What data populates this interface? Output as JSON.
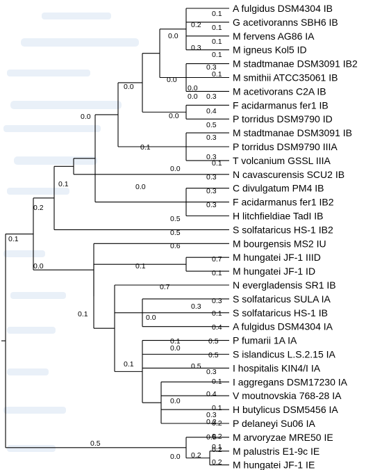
{
  "taxa": [
    "A fulgidus DSM4304 IB",
    "G acetivoranns SBH6 IB",
    "M fervens AG86 IA",
    "M igneus Kol5 ID",
    "M stadtmanae DSM3091 IB2",
    "M smithii ATCC35061 IB",
    "M acetivorans C2A IB",
    "F acidarmanus fer1 IB",
    "P torridus DSM9790 ID",
    "M stadtmanae DSM3091 IB",
    "P torridus DSM9790 IIIA",
    "T volcanium GSSL IIIA",
    "N cavascurensis SCU2 IB",
    "C divulgatum PM4 IB",
    "F acidarmanus fer1 IB2",
    "H litchfieldiae TadI IB",
    "S solfataricus HS-1 IB2",
    "M bourgensis MS2 IU",
    "M hungatei JF-1 IIID",
    "M hungatei JF-1 ID",
    "N evergladensis SR1 IB",
    "S solfataricus SULA IA",
    "S solfataricus HS-1 IB",
    "A fulgidus DSM4304 IA",
    "P fumarii 1A IA",
    "S islandicus L.S.2.15 IA",
    "I hospitalis KIN4/I IA",
    "I aggregans DSM17230 IA",
    "V moutnovskia 768-28 IA",
    "H butylicus DSM5456 IA",
    "P delaneyi Su06 IA",
    "M arvoryzae MRE50 IE",
    "M palustris E1-9c IE",
    "M hungatei JF-1 IE"
  ],
  "branch_lengths": [
    "0.1",
    "0.1",
    "0.2",
    "0.1",
    "0.3",
    "0.0",
    "0.1",
    "0.3",
    "0.1",
    "0.0",
    "0.0",
    "0.0",
    "0.3",
    "0.0",
    "0.4",
    "0.0",
    "0.5",
    "0.3",
    "0.3",
    "0.1",
    "0.0",
    "0.1",
    "0.3",
    "0.3",
    "0.3",
    "0.0",
    "0.1",
    "0.0",
    "0.2",
    "0.5",
    "0.1",
    "0.5",
    "0.6",
    "0.1",
    "0.7",
    "0.0",
    "0.1",
    "0.7",
    "0.1",
    "0.3",
    "0.1",
    "0.3",
    "0.0",
    "0.4",
    "0.1",
    "0.5",
    "0.5",
    "0.1",
    "0.0",
    "0.3",
    "0.5",
    "0.1",
    "0.4",
    "0.1",
    "0.0",
    "0.3",
    "0.2",
    "0.2",
    "0.1",
    "0.0",
    "0.5",
    "0.5",
    "0.2",
    "0.2",
    "0.2",
    "0.2"
  ]
}
